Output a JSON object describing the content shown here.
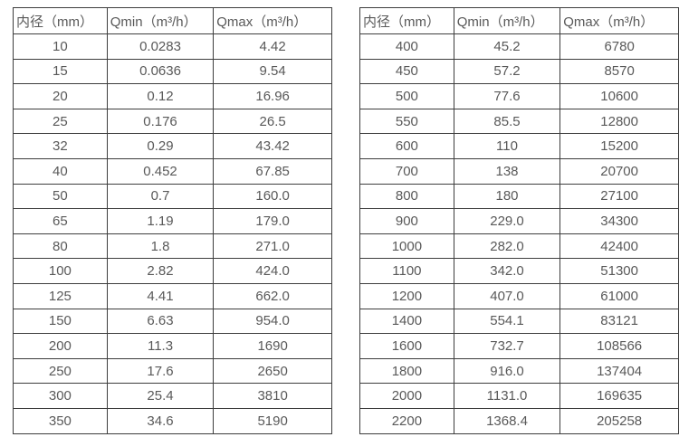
{
  "colors": {
    "background": "#ffffff",
    "table_border": "#3d3d3d",
    "text": "#595959"
  },
  "tables": [
    {
      "name": "flow-spec-table-small-diameters",
      "headers": [
        "内径（mm）",
        "Qmin（m³/h）",
        "Qmax（m³/h）"
      ],
      "rows": [
        [
          "10",
          "0.0283",
          "4.42"
        ],
        [
          "15",
          "0.0636",
          "9.54"
        ],
        [
          "20",
          "0.12",
          "16.96"
        ],
        [
          "25",
          "0.176",
          "26.5"
        ],
        [
          "32",
          "0.29",
          "43.42"
        ],
        [
          "40",
          "0.452",
          "67.85"
        ],
        [
          "50",
          "0.7",
          "160.0"
        ],
        [
          "65",
          "1.19",
          "179.0"
        ],
        [
          "80",
          "1.8",
          "271.0"
        ],
        [
          "100",
          "2.82",
          "424.0"
        ],
        [
          "125",
          "4.41",
          "662.0"
        ],
        [
          "150",
          "6.63",
          "954.0"
        ],
        [
          "200",
          "11.3",
          "1690"
        ],
        [
          "250",
          "17.6",
          "2650"
        ],
        [
          "300",
          "25.4",
          "3810"
        ],
        [
          "350",
          "34.6",
          "5190"
        ]
      ]
    },
    {
      "name": "flow-spec-table-large-diameters",
      "headers": [
        "内径（mm）",
        "Qmin（m³/h）",
        "Qmax（m³/h）"
      ],
      "rows": [
        [
          "400",
          "45.2",
          "6780"
        ],
        [
          "450",
          "57.2",
          "8570"
        ],
        [
          "500",
          "77.6",
          "10600"
        ],
        [
          "550",
          "85.5",
          "12800"
        ],
        [
          "600",
          "110",
          "15200"
        ],
        [
          "700",
          "138",
          "20700"
        ],
        [
          "800",
          "180",
          "27100"
        ],
        [
          "900",
          "229.0",
          "34300"
        ],
        [
          "1000",
          "282.0",
          "42400"
        ],
        [
          "1100",
          "342.0",
          "51300"
        ],
        [
          "1200",
          "407.0",
          "61000"
        ],
        [
          "1400",
          "554.1",
          "83121"
        ],
        [
          "1600",
          "732.7",
          "108566"
        ],
        [
          "1800",
          "916.0",
          "137404"
        ],
        [
          "2000",
          "1131.0",
          "169635"
        ],
        [
          "2200",
          "1368.4",
          "205258"
        ]
      ]
    }
  ]
}
